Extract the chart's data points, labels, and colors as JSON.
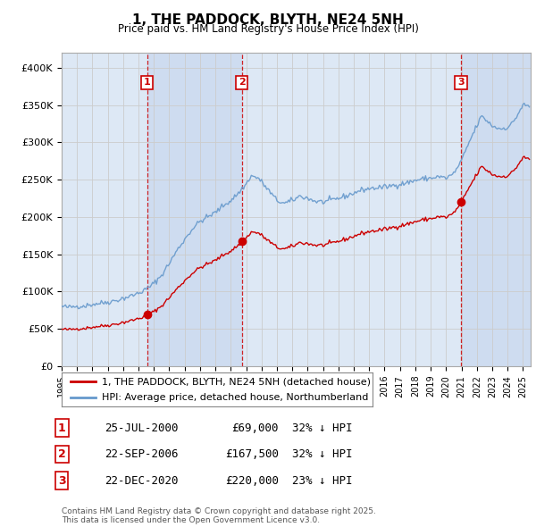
{
  "title": "1, THE PADDOCK, BLYTH, NE24 5NH",
  "subtitle": "Price paid vs. HM Land Registry's House Price Index (HPI)",
  "legend_line1": "1, THE PADDOCK, BLYTH, NE24 5NH (detached house)",
  "legend_line2": "HPI: Average price, detached house, Northumberland",
  "footer": "Contains HM Land Registry data © Crown copyright and database right 2025.\nThis data is licensed under the Open Government Licence v3.0.",
  "transactions": [
    {
      "num": 1,
      "date": "25-JUL-2000",
      "price": 69000,
      "note": "32% ↓ HPI",
      "x": 2000.56
    },
    {
      "num": 2,
      "date": "22-SEP-2006",
      "price": 167500,
      "note": "32% ↓ HPI",
      "x": 2006.72
    },
    {
      "num": 3,
      "date": "22-DEC-2020",
      "price": 220000,
      "note": "23% ↓ HPI",
      "x": 2020.97
    }
  ],
  "red_line_color": "#cc0000",
  "blue_line_color": "#6699cc",
  "vline_color": "#cc0000",
  "grid_color": "#cccccc",
  "background_color": "#ffffff",
  "plot_bg_color": "#dde8f5",
  "shade_color": "#c8d8ee",
  "ylim": [
    0,
    420000
  ],
  "xlim_start": 1995.0,
  "xlim_end": 2025.5,
  "yticks": [
    0,
    50000,
    100000,
    150000,
    200000,
    250000,
    300000,
    350000,
    400000
  ],
  "ytick_labels": [
    "£0",
    "£50K",
    "£100K",
    "£150K",
    "£200K",
    "£250K",
    "£300K",
    "£350K",
    "£400K"
  ],
  "xticks": [
    1995,
    1996,
    1997,
    1998,
    1999,
    2000,
    2001,
    2002,
    2003,
    2004,
    2005,
    2006,
    2007,
    2008,
    2009,
    2010,
    2011,
    2012,
    2013,
    2014,
    2015,
    2016,
    2017,
    2018,
    2019,
    2020,
    2021,
    2022,
    2023,
    2024,
    2025
  ]
}
